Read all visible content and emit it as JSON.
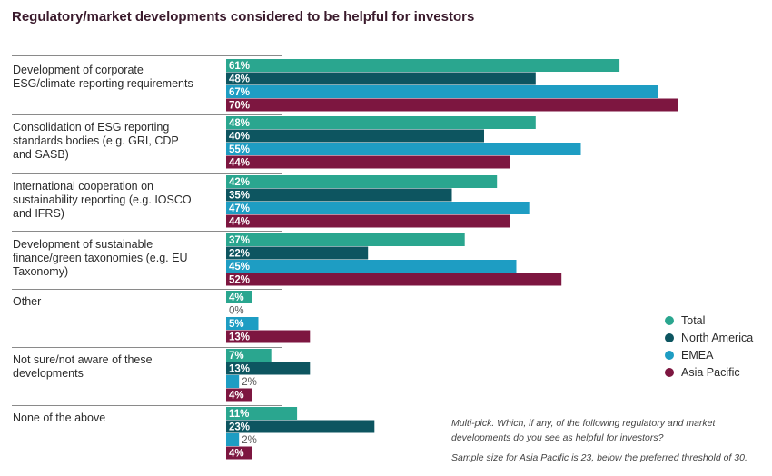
{
  "title": "Regulatory/market developments considered to be helpful for investors",
  "chart_data": {
    "type": "bar",
    "orientation": "horizontal",
    "categories": [
      [
        "Development of corporate",
        "ESG/climate reporting requirements"
      ],
      [
        "Consolidation of ESG reporting",
        "standards bodies (e.g. GRI, CDP",
        "and SASB)"
      ],
      [
        "International cooperation on",
        "sustainability reporting (e.g. IOSCO",
        "and IFRS)"
      ],
      [
        "Development of sustainable",
        "finance/green taxonomies (e.g. EU",
        "Taxonomy)"
      ],
      [
        "Other"
      ],
      [
        "Not sure/not aware of these",
        "developments"
      ],
      [
        "None of the above"
      ]
    ],
    "series": [
      {
        "name": "Total",
        "color": "#2aa68f",
        "values": [
          61,
          48,
          42,
          37,
          4,
          7,
          11
        ]
      },
      {
        "name": "North America",
        "color": "#0d5560",
        "values": [
          48,
          40,
          35,
          22,
          0,
          13,
          23
        ]
      },
      {
        "name": "EMEA",
        "color": "#1e9dc3",
        "values": [
          67,
          55,
          47,
          45,
          5,
          2,
          2
        ]
      },
      {
        "name": "Asia Pacific",
        "color": "#7d1640",
        "values": [
          70,
          44,
          44,
          52,
          13,
          4,
          4
        ]
      }
    ],
    "value_suffix": "%",
    "legend_position": "right",
    "grid": false
  },
  "notes": {
    "question": "Multi-pick. Which, if any, of the following regulatory and market developments do you see as helpful for investors?",
    "sample": "Sample size for Asia Pacific is 23, below the preferred threshold of 30."
  }
}
